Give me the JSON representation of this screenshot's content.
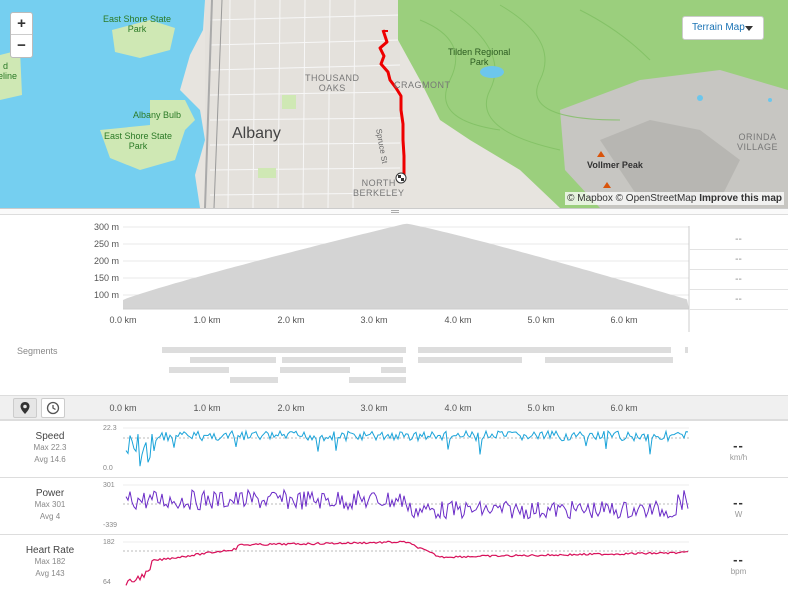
{
  "map": {
    "type_label": "Terrain Map",
    "zoom_in": "+",
    "zoom_out": "−",
    "attribution": {
      "mapbox": "© Mapbox",
      "osm": "© OpenStreetMap",
      "improve": "Improve this map"
    },
    "places": {
      "east_shore_top": "East Shore State\nPark",
      "east_shore_top_1": "East Shore State",
      "east_shore_top_2": "Park",
      "albany_bulb": "Albany Bulb",
      "east_shore_bottom_1": "East Shore State",
      "east_shore_bottom_2": "Park",
      "eline_1": "d",
      "eline_2": "eline",
      "albany": "Albany",
      "thousand_oaks_1": "THOUSAND",
      "thousand_oaks_2": "OAKS",
      "cragmont": "CRAGMONT",
      "tilden_1": "Tilden Regional",
      "tilden_2": "Park",
      "north_berkeley_1": "NORTH",
      "north_berkeley_2": "BERKELEY",
      "spruce": "Spruce St",
      "vollmer": "Vollmer Peak",
      "orinda_1": "ORINDA",
      "orinda_2": "VILLAGE"
    }
  },
  "elevation": {
    "y_ticks": [
      "300 m",
      "250 m",
      "200 m",
      "150 m",
      "100 m"
    ],
    "x_ticks": [
      "0.0 km",
      "1.0 km",
      "2.0 km",
      "3.0 km",
      "4.0 km",
      "5.0 km",
      "6.0 km"
    ],
    "side_values": [
      "--",
      "--",
      "--",
      "--"
    ]
  },
  "segments_label": "Segments",
  "toolbar": {
    "x_ticks": [
      "0.0 km",
      "1.0 km",
      "2.0 km",
      "3.0 km",
      "4.0 km",
      "5.0 km",
      "6.0 km"
    ]
  },
  "streams": [
    {
      "title": "Speed",
      "max": "Max 22.3",
      "avg": "Avg 14.6",
      "top": "22.3",
      "bottom": "0.0",
      "value": "--",
      "unit": "km/h",
      "color": "#1aa3d9"
    },
    {
      "title": "Power",
      "max": "Max 301",
      "avg": "Avg 4",
      "top": "301",
      "bottom": "-339",
      "value": "--",
      "unit": "W",
      "color": "#6a2bc7"
    },
    {
      "title": "Heart Rate",
      "max": "Max 182",
      "avg": "Avg 143",
      "top": "182",
      "bottom": "64",
      "value": "--",
      "unit": "bpm",
      "color": "#d8105a"
    }
  ]
}
